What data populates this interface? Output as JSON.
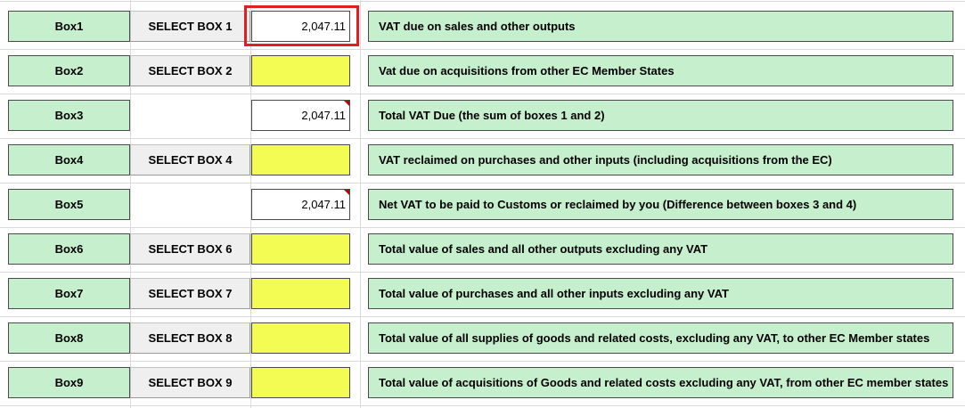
{
  "rows": [
    {
      "box": "Box1",
      "button": "SELECT BOX 1",
      "value": "2,047.11",
      "description": "VAT due on sales and other outputs"
    },
    {
      "box": "Box2",
      "button": "SELECT BOX 2",
      "value": "",
      "description": "Vat due on acquisitions from other EC Member States"
    },
    {
      "box": "Box3",
      "button": "",
      "value": "2,047.11",
      "description": "Total VAT Due (the sum of boxes 1 and 2)"
    },
    {
      "box": "Box4",
      "button": "SELECT BOX 4",
      "value": "",
      "description": "VAT reclaimed on purchases and other inputs (including acquisitions from the EC)"
    },
    {
      "box": "Box5",
      "button": "",
      "value": "2,047.11",
      "description": "Net VAT to be paid to Customs or reclaimed by you (Difference between boxes 3 and 4)"
    },
    {
      "box": "Box6",
      "button": "SELECT BOX 6",
      "value": "",
      "description": "Total value of sales and all other outputs excluding any VAT"
    },
    {
      "box": "Box7",
      "button": "SELECT BOX 7",
      "value": "",
      "description": "Total value of purchases and all other inputs excluding any VAT"
    },
    {
      "box": "Box8",
      "button": "SELECT BOX 8",
      "value": "",
      "description": "Total value of all supplies of goods and related costs, excluding any VAT, to other EC Member states"
    },
    {
      "box": "Box9",
      "button": "SELECT BOX 9",
      "value": "",
      "description": "Total value of acquisitions of Goods and related costs excluding any VAT, from other EC member states"
    }
  ],
  "colors": {
    "label_fill": "#c6efce",
    "input_fill": "#f2fc52",
    "selection_outline": "#e02020",
    "comment_marker": "#c00000"
  }
}
